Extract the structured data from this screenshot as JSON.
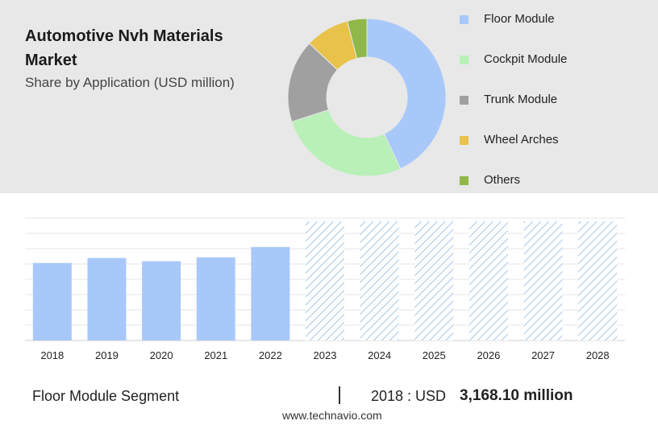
{
  "chart_data": [
    {
      "type": "pie",
      "title": "Automotive Nvh Materials Market",
      "subtitle": "Share by Application (USD million)",
      "categories": [
        "Floor Module",
        "Cockpit Module",
        "Trunk Module",
        "Wheel Arches",
        "Others"
      ],
      "values": [
        43,
        27,
        17,
        9,
        4
      ],
      "colors": [
        "#a8c8fa",
        "#b8f0b8",
        "#a0a0a0",
        "#e8c24a",
        "#90b848"
      ],
      "legend_position": "right"
    },
    {
      "type": "bar",
      "categories": [
        "2018",
        "2019",
        "2020",
        "2021",
        "2022",
        "2023",
        "2024",
        "2025",
        "2026",
        "2027",
        "2028"
      ],
      "values": [
        3168.1,
        3370,
        3240,
        3400,
        3820,
        null,
        null,
        null,
        null,
        null,
        null
      ],
      "forecast_years": [
        "2023",
        "2024",
        "2025",
        "2026",
        "2027",
        "2028"
      ],
      "bar_color": "#a8c8fa",
      "forecast_color": "#b4cde8",
      "grid": true
    }
  ],
  "footer": {
    "segment": "Floor Module Segment",
    "year_label": "2018 : USD",
    "value": "3,168.10 million"
  },
  "source": "www.technavio.com"
}
